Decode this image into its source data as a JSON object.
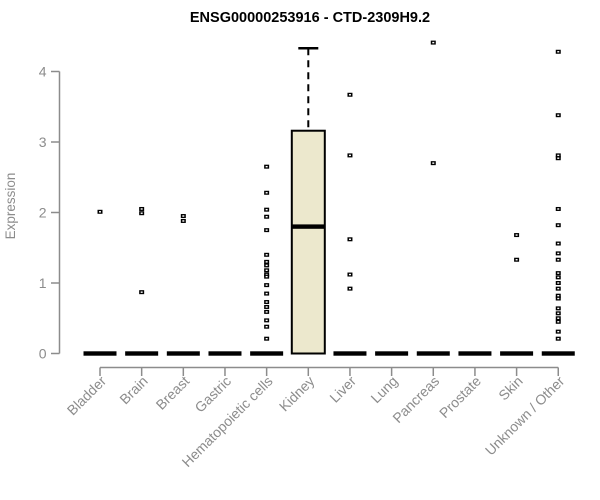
{
  "window": {
    "background": "#ffffff"
  },
  "chart_data": {
    "type": "boxplot",
    "title": "ENSG00000253916 - CTD-2309H9.2",
    "xlabel": "",
    "ylabel": "Expression",
    "ylim": [
      0,
      4
    ],
    "yticks": [
      0,
      1,
      2,
      3,
      4
    ],
    "grid": false,
    "legend": "none",
    "colors": {
      "box_fill": "#ece8cd",
      "box_stroke": "#000000",
      "median": "#000000",
      "point": "#000000",
      "axis": "#8c8c8c",
      "tick_label": "#8c8c8c",
      "title": "#000000",
      "background": "#ffffff"
    },
    "categories": [
      "Bladder",
      "Brain",
      "Breast",
      "Gastric",
      "Hematopoietic cells",
      "Kidney",
      "Liver",
      "Lung",
      "Pancreas",
      "Prostate",
      "Skin",
      "Unknown / Other"
    ],
    "series": [
      {
        "category": "Bladder",
        "box": {
          "q1": 0,
          "median": 0,
          "q3": 0,
          "whisker_low": 0,
          "whisker_high": 0
        },
        "points": [
          2.01
        ]
      },
      {
        "category": "Brain",
        "box": {
          "q1": 0,
          "median": 0,
          "q3": 0,
          "whisker_low": 0,
          "whisker_high": 0
        },
        "points": [
          2.05,
          1.99,
          0.87
        ]
      },
      {
        "category": "Breast",
        "box": {
          "q1": 0,
          "median": 0,
          "q3": 0,
          "whisker_low": 0,
          "whisker_high": 0
        },
        "points": [
          1.95,
          1.88
        ]
      },
      {
        "category": "Gastric",
        "box": {
          "q1": 0,
          "median": 0,
          "q3": 0,
          "whisker_low": 0,
          "whisker_high": 0
        },
        "points": []
      },
      {
        "category": "Hematopoietic cells",
        "box": {
          "q1": 0,
          "median": 0,
          "q3": 0,
          "whisker_low": 0,
          "whisker_high": 0
        },
        "points": [
          2.65,
          2.28,
          2.04,
          1.94,
          1.75,
          1.4,
          1.3,
          1.25,
          1.18,
          1.12,
          1.09,
          0.97,
          0.85,
          0.73,
          0.66,
          0.59,
          0.47,
          0.38,
          0.21
        ]
      },
      {
        "category": "Kidney",
        "box": {
          "q1": 0,
          "median": 1.8,
          "q3": 3.16,
          "whisker_low": 0,
          "whisker_high": 4.33
        },
        "points": []
      },
      {
        "category": "Liver",
        "box": {
          "q1": 0,
          "median": 0,
          "q3": 0,
          "whisker_low": 0,
          "whisker_high": 0
        },
        "points": [
          3.67,
          2.81,
          1.62,
          1.12,
          0.92
        ]
      },
      {
        "category": "Lung",
        "box": {
          "q1": 0,
          "median": 0,
          "q3": 0,
          "whisker_low": 0,
          "whisker_high": 0
        },
        "points": []
      },
      {
        "category": "Pancreas",
        "box": {
          "q1": 0,
          "median": 0,
          "q3": 0,
          "whisker_low": 0,
          "whisker_high": 0
        },
        "points": [
          4.41,
          2.7
        ]
      },
      {
        "category": "Prostate",
        "box": {
          "q1": 0,
          "median": 0,
          "q3": 0,
          "whisker_low": 0,
          "whisker_high": 0
        },
        "points": []
      },
      {
        "category": "Skin",
        "box": {
          "q1": 0,
          "median": 0,
          "q3": 0,
          "whisker_low": 0,
          "whisker_high": 0
        },
        "points": [
          1.68,
          1.33
        ]
      },
      {
        "category": "Unknown / Other",
        "box": {
          "q1": 0,
          "median": 0,
          "q3": 0,
          "whisker_low": 0,
          "whisker_high": 0
        },
        "points": [
          4.28,
          3.38,
          2.81,
          2.77,
          2.05,
          1.82,
          1.56,
          1.42,
          1.33,
          1.14,
          1.08,
          1.0,
          0.92,
          0.82,
          0.78,
          0.64,
          0.57,
          0.5,
          0.45,
          0.31,
          0.21
        ]
      }
    ]
  }
}
